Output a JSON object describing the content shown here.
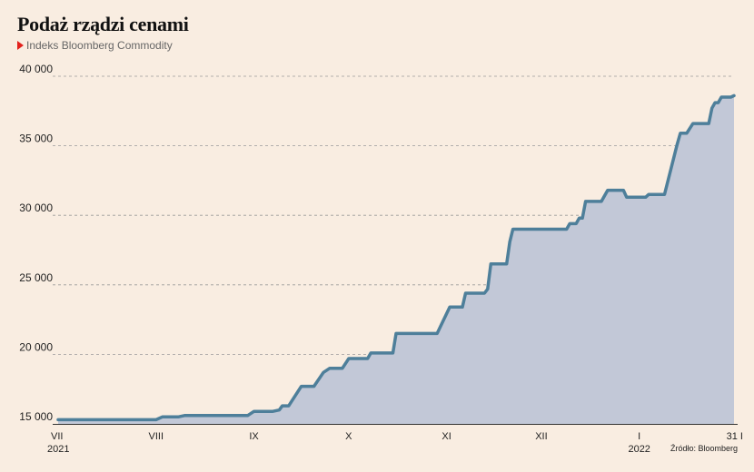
{
  "header": {
    "title": "Podaż rządzi cenami",
    "subtitle": "Indeks Bloomberg Commodity"
  },
  "source": "Źródło: Bloomberg",
  "colors": {
    "background": "#f9ede1",
    "line": "#4e7f9a",
    "area": "#c2c8d7",
    "grid": "#9a9a9a",
    "marker": "#e3211c"
  },
  "chart_data": {
    "type": "area",
    "title": "Podaż rządzi cenami",
    "subtitle": "Indeks Bloomberg Commodity",
    "ylim": [
      15000,
      40000
    ],
    "yticks": [
      15000,
      20000,
      25000,
      30000,
      35000,
      40000
    ],
    "ytick_labels": [
      "15 000",
      "20 000",
      "25 000",
      "30 000",
      "35 000",
      "40 000"
    ],
    "x_axis": {
      "start": "2021-07-01",
      "end": "2022-01-31",
      "ticks": [
        {
          "date": "2021-07-01",
          "label": "VII",
          "sublabel": "2021"
        },
        {
          "date": "2021-08-01",
          "label": "VIII",
          "sublabel": ""
        },
        {
          "date": "2021-09-01",
          "label": "IX",
          "sublabel": ""
        },
        {
          "date": "2021-10-01",
          "label": "X",
          "sublabel": ""
        },
        {
          "date": "2021-11-01",
          "label": "XI",
          "sublabel": ""
        },
        {
          "date": "2021-12-01",
          "label": "XII",
          "sublabel": ""
        },
        {
          "date": "2022-01-01",
          "label": "I",
          "sublabel": "2022"
        },
        {
          "date": "2022-01-31",
          "label": "31 I",
          "sublabel": ""
        }
      ]
    },
    "grid": true,
    "series": [
      {
        "points": [
          [
            "2021-07-01",
            15300
          ],
          [
            "2021-08-01",
            15300
          ],
          [
            "2021-08-03",
            15500
          ],
          [
            "2021-08-08",
            15500
          ],
          [
            "2021-08-10",
            15600
          ],
          [
            "2021-08-30",
            15600
          ],
          [
            "2021-09-01",
            15900
          ],
          [
            "2021-09-07",
            15900
          ],
          [
            "2021-09-09",
            16000
          ],
          [
            "2021-09-10",
            16300
          ],
          [
            "2021-09-12",
            16300
          ],
          [
            "2021-09-16",
            17700
          ],
          [
            "2021-09-20",
            17700
          ],
          [
            "2021-09-23",
            18700
          ],
          [
            "2021-09-25",
            19000
          ],
          [
            "2021-09-29",
            19000
          ],
          [
            "2021-10-01",
            19700
          ],
          [
            "2021-10-07",
            19700
          ],
          [
            "2021-10-08",
            20100
          ],
          [
            "2021-10-15",
            20100
          ],
          [
            "2021-10-16",
            21500
          ],
          [
            "2021-10-29",
            21500
          ],
          [
            "2021-11-02",
            23400
          ],
          [
            "2021-11-06",
            23400
          ],
          [
            "2021-11-07",
            24400
          ],
          [
            "2021-11-13",
            24400
          ],
          [
            "2021-11-14",
            24700
          ],
          [
            "2021-11-15",
            26500
          ],
          [
            "2021-11-20",
            26500
          ],
          [
            "2021-11-21",
            28100
          ],
          [
            "2021-11-22",
            29000
          ],
          [
            "2021-12-09",
            29000
          ],
          [
            "2021-12-10",
            29400
          ],
          [
            "2021-12-12",
            29400
          ],
          [
            "2021-12-13",
            29800
          ],
          [
            "2021-12-14",
            29800
          ],
          [
            "2021-12-15",
            31000
          ],
          [
            "2021-12-20",
            31000
          ],
          [
            "2021-12-22",
            31800
          ],
          [
            "2021-12-27",
            31800
          ],
          [
            "2021-12-28",
            31300
          ],
          [
            "2022-01-03",
            31300
          ],
          [
            "2022-01-04",
            31500
          ],
          [
            "2022-01-09",
            31500
          ],
          [
            "2022-01-13",
            35100
          ],
          [
            "2022-01-14",
            35900
          ],
          [
            "2022-01-16",
            35900
          ],
          [
            "2022-01-18",
            36600
          ],
          [
            "2022-01-23",
            36600
          ],
          [
            "2022-01-24",
            37700
          ],
          [
            "2022-01-25",
            38100
          ],
          [
            "2022-01-26",
            38100
          ],
          [
            "2022-01-27",
            38500
          ],
          [
            "2022-01-30",
            38500
          ],
          [
            "2022-01-31",
            38600
          ]
        ]
      }
    ]
  }
}
